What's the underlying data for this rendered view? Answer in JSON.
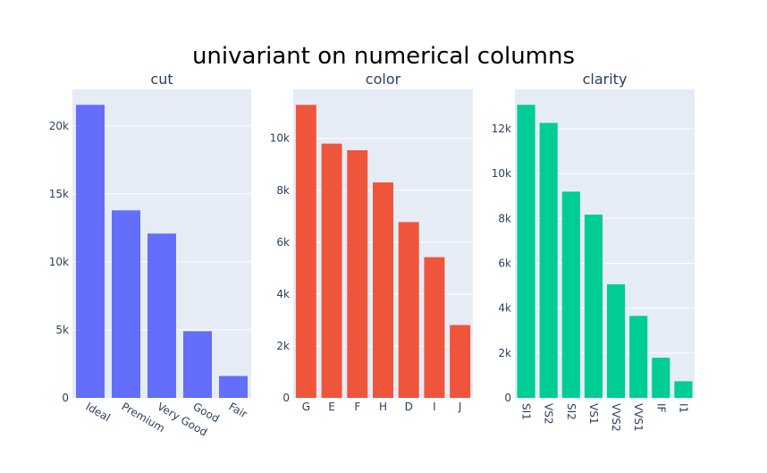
{
  "title": "univariant on numerical columns",
  "colors": {
    "plot_bg": "#E5ECF6",
    "grid": "#ffffff",
    "tick_text": "#2a3f5f",
    "title_text": "#000000"
  },
  "chart_data": [
    {
      "type": "bar",
      "subtitle": "cut",
      "color": "#636EFA",
      "categories": [
        "Ideal",
        "Premium",
        "Very Good",
        "Good",
        "Fair"
      ],
      "values": [
        21551,
        13791,
        12082,
        4906,
        1610
      ],
      "ylim": [
        0,
        22685
      ],
      "yticks": [
        0,
        5000,
        10000,
        15000,
        20000
      ],
      "ytick_labels": [
        "0",
        "5k",
        "10k",
        "15k",
        "20k"
      ],
      "xtick_rotation": 30
    },
    {
      "type": "bar",
      "subtitle": "color",
      "color": "#EF553B",
      "categories": [
        "G",
        "E",
        "F",
        "H",
        "D",
        "I",
        "J"
      ],
      "values": [
        11292,
        9797,
        9542,
        8304,
        6775,
        5422,
        2808
      ],
      "ylim": [
        0,
        11886
      ],
      "yticks": [
        0,
        2000,
        4000,
        6000,
        8000,
        10000
      ],
      "ytick_labels": [
        "0",
        "2k",
        "4k",
        "6k",
        "8k",
        "10k"
      ],
      "xtick_rotation": 0
    },
    {
      "type": "bar",
      "subtitle": "clarity",
      "color": "#00CC96",
      "categories": [
        "SI1",
        "VS2",
        "SI2",
        "VS1",
        "VVS2",
        "VVS1",
        "IF",
        "I1"
      ],
      "values": [
        13065,
        12258,
        9194,
        8171,
        5066,
        3655,
        1790,
        741
      ],
      "ylim": [
        0,
        13752
      ],
      "yticks": [
        0,
        2000,
        4000,
        6000,
        8000,
        10000,
        12000
      ],
      "ytick_labels": [
        "0",
        "2k",
        "4k",
        "6k",
        "8k",
        "10k",
        "12k"
      ],
      "xtick_rotation": 90
    }
  ]
}
